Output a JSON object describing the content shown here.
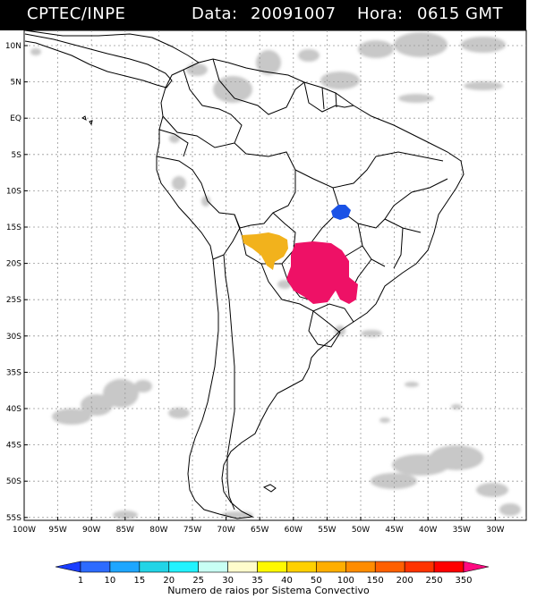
{
  "header": {
    "source": "CPTEC/INPE",
    "date_label": "Data:",
    "date_value": "20091007",
    "time_label": "Hora:",
    "time_value": "0615 GMT"
  },
  "axes": {
    "lat_labels": [
      "10N",
      "5N",
      "EQ",
      "5S",
      "10S",
      "15S",
      "20S",
      "25S",
      "30S",
      "35S",
      "40S",
      "45S",
      "50S",
      "55S"
    ],
    "lon_labels": [
      "100W",
      "95W",
      "90W",
      "85W",
      "80W",
      "75W",
      "70W",
      "65W",
      "60W",
      "55W",
      "50W",
      "45W",
      "40W",
      "35W",
      "30W"
    ]
  },
  "colorbar": {
    "title": "Numero de raios por Sistema Convectivo",
    "labels": [
      "1",
      "10",
      "15",
      "20",
      "25",
      "30",
      "35",
      "40",
      "50",
      "100",
      "150",
      "200",
      "250",
      "350"
    ],
    "colors": [
      "#1a3dff",
      "#2d6bff",
      "#1ea6ff",
      "#22d4e6",
      "#22f2ff",
      "#c8fff4",
      "#fffccc",
      "#fff900",
      "#ffd000",
      "#ffae00",
      "#ff8c00",
      "#ff6000",
      "#ff3300",
      "#ff0000",
      "#ff0a80"
    ]
  },
  "systems": [
    {
      "name": "system-blue",
      "color": "#1a52e6",
      "value": "10"
    },
    {
      "name": "system-orange",
      "color": "#f2b21c",
      "value": "50"
    },
    {
      "name": "system-magenta",
      "color": "#ee1166",
      "value": "350"
    }
  ],
  "palette": {
    "cloud": "#c8c8c8",
    "grid": "#999999",
    "border": "#000000"
  }
}
